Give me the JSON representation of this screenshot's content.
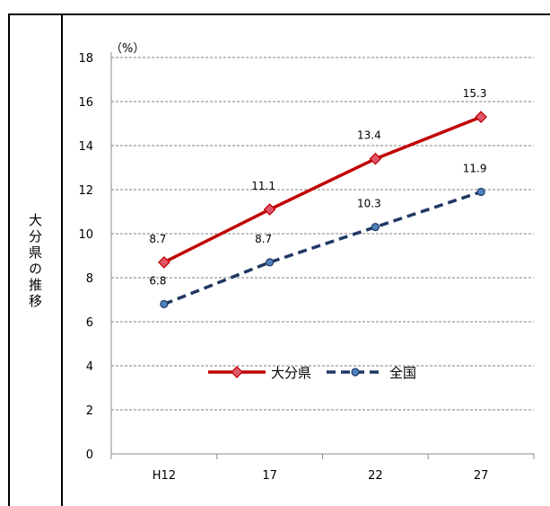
{
  "side_label": "大分県の推移",
  "chart_data": {
    "type": "line",
    "title": "",
    "unit_label": "（%）",
    "xlabel": "",
    "ylabel": "",
    "categories": [
      "H12",
      "17",
      "22",
      "27"
    ],
    "ylim": [
      0,
      18
    ],
    "ytick_step": 2,
    "yticks": [
      "0",
      "2",
      "4",
      "6",
      "8",
      "10",
      "12",
      "14",
      "16",
      "18"
    ],
    "grid": true,
    "legend_position": "center",
    "series": [
      {
        "name": "大分県",
        "values": [
          8.7,
          11.1,
          13.4,
          15.3
        ],
        "labels": [
          "8.7",
          "11.1",
          "13.4",
          "15.3"
        ],
        "color": "#c00000",
        "marker_color": "#e0566a",
        "dash": "solid",
        "marker": "diamond"
      },
      {
        "name": "全国",
        "values": [
          6.8,
          8.7,
          10.3,
          11.9
        ],
        "labels": [
          "6.8",
          "8.7",
          "10.3",
          "11.9"
        ],
        "color": "#1f3864",
        "marker_color": "#4f81bd",
        "dash": "dashed",
        "marker": "circle"
      }
    ]
  }
}
